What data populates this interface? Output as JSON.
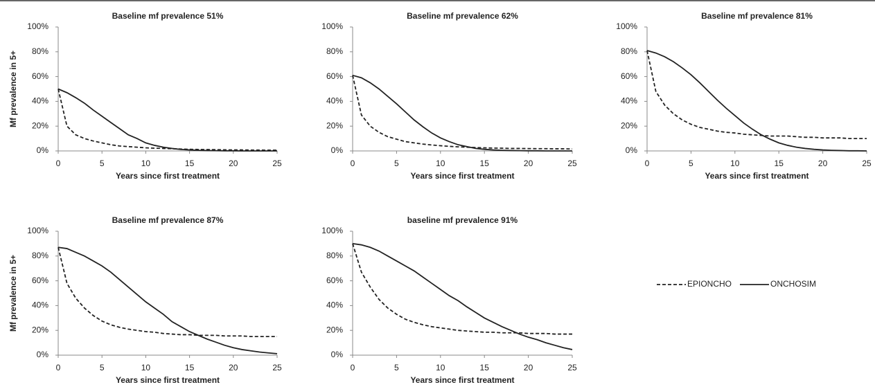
{
  "legend": {
    "series": [
      {
        "name": "EPIONCHO",
        "color": "#222222",
        "dash": true
      },
      {
        "name": "ONCHOSIM",
        "color": "#222222",
        "dash": false
      }
    ]
  },
  "chart_data": [
    {
      "type": "line",
      "title": "Baseline mf prevalence 51%",
      "x_label": "Years since first treatment",
      "y_label": "Mf prevalence in 5+",
      "x": [
        0,
        1,
        2,
        3,
        4,
        5,
        6,
        7,
        8,
        9,
        10,
        11,
        12,
        13,
        14,
        15,
        16,
        17,
        18,
        19,
        20,
        21,
        22,
        23,
        24,
        25
      ],
      "series": [
        {
          "values": [
            50,
            20,
            13,
            10,
            8,
            6.5,
            5,
            4,
            3.5,
            3,
            2.5,
            2.2,
            2,
            1.8,
            1.5,
            1.3,
            1.2,
            1.1,
            1,
            0.9,
            0.8,
            0.8,
            0.7,
            0.7,
            0.6,
            0.6
          ]
        },
        {
          "values": [
            50,
            47,
            43,
            38.5,
            33,
            28,
            23,
            18,
            13,
            10,
            6.5,
            4.5,
            3,
            2,
            1.2,
            0.8,
            0.5,
            0.3,
            0.2,
            0.1,
            0.1,
            0,
            0,
            0,
            0,
            0
          ]
        }
      ],
      "xlim": [
        0,
        25
      ],
      "xticks": [
        0,
        5,
        10,
        15,
        20,
        25
      ],
      "ylim": [
        0,
        100
      ],
      "yticks": [
        {
          "value": 0,
          "label": "0%"
        },
        {
          "value": 20,
          "label": "20%"
        },
        {
          "value": 40,
          "label": "40%"
        },
        {
          "value": 60,
          "label": "60%"
        },
        {
          "value": 80,
          "label": "80%"
        },
        {
          "value": 100,
          "label": "100%"
        }
      ]
    },
    {
      "type": "line",
      "title": "Baseline mf prevalence 62%",
      "x_label": "Years since first treatment",
      "x": [
        0,
        1,
        2,
        3,
        4,
        5,
        6,
        7,
        8,
        9,
        10,
        11,
        12,
        13,
        14,
        15,
        16,
        17,
        18,
        19,
        20,
        21,
        22,
        23,
        24,
        25
      ],
      "series": [
        {
          "values": [
            61,
            29,
            20,
            15,
            11.5,
            9.5,
            7.5,
            6.5,
            5.5,
            4.8,
            4.2,
            3.7,
            3.3,
            3,
            2.7,
            2.5,
            2.3,
            2.2,
            2,
            2,
            1.9,
            1.8,
            1.8,
            1.7,
            1.7,
            1.6
          ]
        },
        {
          "values": [
            61,
            59,
            55,
            50,
            44,
            38,
            31.5,
            25,
            19.5,
            14.5,
            10.5,
            7.5,
            5,
            3.5,
            2,
            1.3,
            0.8,
            0.5,
            0.3,
            0.2,
            0.1,
            0.1,
            0,
            0,
            0,
            0
          ]
        }
      ],
      "xlim": [
        0,
        25
      ],
      "xticks": [
        0,
        5,
        10,
        15,
        20,
        25
      ],
      "ylim": [
        0,
        100
      ],
      "yticks": [
        {
          "value": 0,
          "label": "0%"
        },
        {
          "value": 20,
          "label": "20%"
        },
        {
          "value": 40,
          "label": "40%"
        },
        {
          "value": 60,
          "label": "60%"
        },
        {
          "value": 80,
          "label": "80%"
        },
        {
          "value": 100,
          "label": "100%"
        }
      ]
    },
    {
      "type": "line",
      "title": "Baseline mf prevalence 81%",
      "x_label": "Years since first treatment",
      "x": [
        0,
        1,
        2,
        3,
        4,
        5,
        6,
        7,
        8,
        9,
        10,
        11,
        12,
        13,
        14,
        15,
        16,
        17,
        18,
        19,
        20,
        21,
        22,
        23,
        24,
        25
      ],
      "series": [
        {
          "values": [
            81,
            48,
            37,
            30,
            25,
            21.5,
            19,
            17.5,
            16,
            15,
            14.5,
            13.5,
            13,
            12.5,
            12,
            12,
            12,
            11.5,
            11,
            11,
            10.5,
            10.5,
            10.5,
            10,
            10,
            10
          ]
        },
        {
          "values": [
            81,
            79,
            76,
            72,
            67,
            61.5,
            55,
            48,
            41,
            34.5,
            28.5,
            22.5,
            17.5,
            13,
            9.5,
            6.5,
            4.5,
            3,
            2,
            1.3,
            0.8,
            0.5,
            0.3,
            0.1,
            0.1,
            0
          ]
        }
      ],
      "xlim": [
        0,
        25
      ],
      "xticks": [
        0,
        5,
        10,
        15,
        20,
        25
      ],
      "ylim": [
        0,
        100
      ],
      "yticks": [
        {
          "value": 0,
          "label": "0%"
        },
        {
          "value": 20,
          "label": "20%"
        },
        {
          "value": 40,
          "label": "40%"
        },
        {
          "value": 60,
          "label": "60%"
        },
        {
          "value": 80,
          "label": "80%"
        },
        {
          "value": 100,
          "label": "100%"
        }
      ]
    },
    {
      "type": "line",
      "title": "Baseline mf prevalence 87%",
      "x_label": "Years since first treatment",
      "y_label": "Mf prevalence in 5+",
      "x": [
        0,
        1,
        2,
        3,
        4,
        5,
        6,
        7,
        8,
        9,
        10,
        11,
        12,
        13,
        14,
        15,
        16,
        17,
        18,
        19,
        20,
        21,
        22,
        23,
        24,
        25
      ],
      "series": [
        {
          "values": [
            87,
            58,
            46,
            38,
            32,
            27.5,
            24.5,
            22.5,
            21,
            20,
            19,
            18.5,
            17.5,
            17,
            16.5,
            16.5,
            16,
            16,
            16,
            15.5,
            15.5,
            15.5,
            15,
            15,
            15,
            15
          ]
        },
        {
          "values": [
            87,
            86,
            83,
            80,
            76,
            72,
            67,
            61,
            55,
            49,
            43,
            38,
            33,
            27,
            23,
            19,
            16,
            13,
            10.5,
            8,
            6,
            4.5,
            3.5,
            2.5,
            1.8,
            1.2
          ]
        }
      ],
      "xlim": [
        0,
        25
      ],
      "xticks": [
        0,
        5,
        10,
        15,
        20,
        25
      ],
      "ylim": [
        0,
        100
      ],
      "yticks": [
        {
          "value": 0,
          "label": "0%"
        },
        {
          "value": 20,
          "label": "20%"
        },
        {
          "value": 40,
          "label": "40%"
        },
        {
          "value": 60,
          "label": "60%"
        },
        {
          "value": 80,
          "label": "80%"
        },
        {
          "value": 100,
          "label": "100%"
        }
      ]
    },
    {
      "type": "line",
      "title": "baseline mf prevalence 91%",
      "x_label": "Years since first treatment",
      "x": [
        0,
        1,
        2,
        3,
        4,
        5,
        6,
        7,
        8,
        9,
        10,
        11,
        12,
        13,
        14,
        15,
        16,
        17,
        18,
        19,
        20,
        21,
        22,
        23,
        24,
        25
      ],
      "series": [
        {
          "values": [
            90,
            67,
            55,
            45,
            38,
            33,
            29,
            26.5,
            24.5,
            23,
            22,
            21,
            20,
            19.5,
            19,
            18.5,
            18.5,
            18,
            18,
            18,
            17.5,
            17.5,
            17.5,
            17,
            17,
            17
          ]
        },
        {
          "values": [
            90,
            89,
            87,
            84,
            80,
            76,
            72,
            68,
            63,
            58,
            53,
            48,
            44,
            39,
            34.5,
            30,
            26.5,
            23,
            20,
            17,
            14.5,
            12.5,
            10,
            8,
            6,
            4.5
          ]
        }
      ],
      "xlim": [
        0,
        25
      ],
      "xticks": [
        0,
        5,
        10,
        15,
        20,
        25
      ],
      "ylim": [
        0,
        100
      ],
      "yticks": [
        {
          "value": 0,
          "label": "0%"
        },
        {
          "value": 20,
          "label": "20%"
        },
        {
          "value": 40,
          "label": "40%"
        },
        {
          "value": 60,
          "label": "60%"
        },
        {
          "value": 80,
          "label": "80%"
        },
        {
          "value": 100,
          "label": "100%"
        }
      ]
    }
  ]
}
